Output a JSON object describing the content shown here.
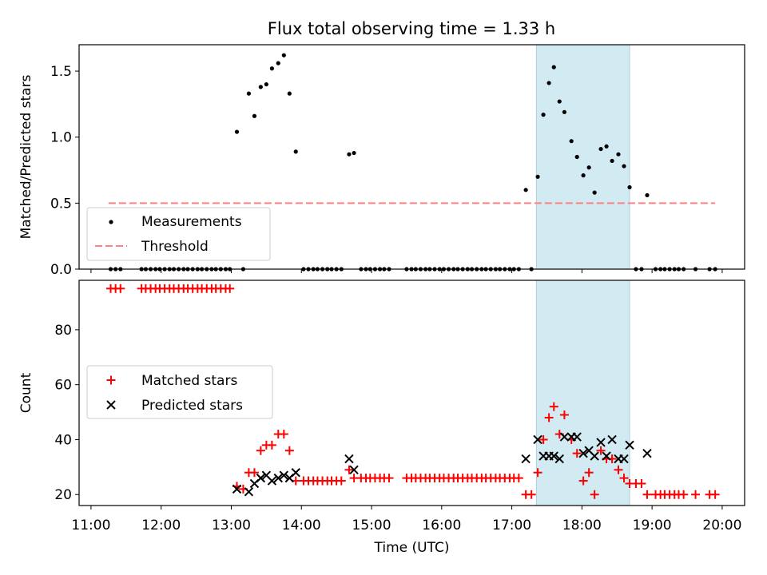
{
  "title": "Flux total observing time = 1.33 h",
  "colors": {
    "threshold": "#ff8080",
    "matched": "#ff0000",
    "predicted": "#000000",
    "span": "#add8e6",
    "measurement": "#000000"
  },
  "chart_data": [
    {
      "type": "scatter",
      "ylabel": "Matched/Predicted stars",
      "xlim": [
        10.83,
        20.32
      ],
      "ylim": [
        0,
        1.7
      ],
      "yticks": [
        {
          "v": 0,
          "label": "0.0"
        },
        {
          "v": 0.5,
          "label": "0.5"
        },
        {
          "v": 1.0,
          "label": "1.0"
        },
        {
          "v": 1.5,
          "label": "1.5"
        }
      ],
      "shaded_span": [
        17.35,
        18.68
      ],
      "legend": {
        "position": "lower left",
        "entries": [
          "Measurements",
          "Threshold"
        ]
      },
      "threshold": {
        "name": "Threshold",
        "value": 0.5,
        "x": [
          11.25,
          19.9
        ]
      },
      "series": [
        {
          "name": "Measurements",
          "points": [
            [
              11.28,
              0
            ],
            [
              11.35,
              0
            ],
            [
              11.42,
              0
            ],
            [
              11.72,
              0
            ],
            [
              11.78,
              0
            ],
            [
              11.85,
              0
            ],
            [
              11.92,
              0
            ],
            [
              11.98,
              0
            ],
            [
              12.05,
              0
            ],
            [
              12.12,
              0
            ],
            [
              12.18,
              0
            ],
            [
              12.25,
              0
            ],
            [
              12.32,
              0
            ],
            [
              12.38,
              0
            ],
            [
              12.45,
              0
            ],
            [
              12.52,
              0
            ],
            [
              12.58,
              0
            ],
            [
              12.65,
              0
            ],
            [
              12.72,
              0
            ],
            [
              12.78,
              0
            ],
            [
              12.85,
              0
            ],
            [
              12.92,
              0
            ],
            [
              12.98,
              0
            ],
            [
              13.08,
              1.04
            ],
            [
              13.17,
              0
            ],
            [
              13.25,
              1.33
            ],
            [
              13.33,
              1.16
            ],
            [
              13.42,
              1.38
            ],
            [
              13.5,
              1.4
            ],
            [
              13.58,
              1.52
            ],
            [
              13.67,
              1.56
            ],
            [
              13.75,
              1.62
            ],
            [
              13.83,
              1.33
            ],
            [
              13.92,
              0.89
            ],
            [
              14.03,
              0
            ],
            [
              14.1,
              0
            ],
            [
              14.17,
              0
            ],
            [
              14.23,
              0
            ],
            [
              14.3,
              0
            ],
            [
              14.37,
              0
            ],
            [
              14.43,
              0
            ],
            [
              14.5,
              0
            ],
            [
              14.57,
              0
            ],
            [
              14.68,
              0.87
            ],
            [
              14.75,
              0.88
            ],
            [
              14.85,
              0
            ],
            [
              14.92,
              0
            ],
            [
              14.98,
              0
            ],
            [
              15.05,
              0
            ],
            [
              15.12,
              0
            ],
            [
              15.18,
              0
            ],
            [
              15.25,
              0
            ],
            [
              15.5,
              0
            ],
            [
              15.57,
              0
            ],
            [
              15.63,
              0
            ],
            [
              15.7,
              0
            ],
            [
              15.77,
              0
            ],
            [
              15.83,
              0
            ],
            [
              15.9,
              0
            ],
            [
              15.97,
              0
            ],
            [
              16.03,
              0
            ],
            [
              16.1,
              0
            ],
            [
              16.17,
              0
            ],
            [
              16.23,
              0
            ],
            [
              16.3,
              0
            ],
            [
              16.37,
              0
            ],
            [
              16.43,
              0
            ],
            [
              16.5,
              0
            ],
            [
              16.57,
              0
            ],
            [
              16.63,
              0
            ],
            [
              16.7,
              0
            ],
            [
              16.77,
              0
            ],
            [
              16.83,
              0
            ],
            [
              16.9,
              0
            ],
            [
              16.97,
              0
            ],
            [
              17.03,
              0
            ],
            [
              17.1,
              0
            ],
            [
              17.2,
              0.6
            ],
            [
              17.28,
              0
            ],
            [
              17.37,
              0.7
            ],
            [
              17.45,
              1.17
            ],
            [
              17.53,
              1.41
            ],
            [
              17.6,
              1.53
            ],
            [
              17.68,
              1.27
            ],
            [
              17.75,
              1.19
            ],
            [
              17.85,
              0.97
            ],
            [
              17.93,
              0.85
            ],
            [
              18.02,
              0.71
            ],
            [
              18.1,
              0.77
            ],
            [
              18.18,
              0.58
            ],
            [
              18.27,
              0.91
            ],
            [
              18.35,
              0.93
            ],
            [
              18.43,
              0.82
            ],
            [
              18.52,
              0.87
            ],
            [
              18.6,
              0.78
            ],
            [
              18.68,
              0.62
            ],
            [
              18.77,
              0
            ],
            [
              18.85,
              0
            ],
            [
              18.93,
              0.56
            ],
            [
              19.05,
              0
            ],
            [
              19.12,
              0
            ],
            [
              19.18,
              0
            ],
            [
              19.25,
              0
            ],
            [
              19.32,
              0
            ],
            [
              19.38,
              0
            ],
            [
              19.45,
              0
            ],
            [
              19.62,
              0
            ],
            [
              19.82,
              0
            ],
            [
              19.9,
              0
            ]
          ]
        }
      ]
    },
    {
      "type": "scatter",
      "xlabel": "Time (UTC)",
      "ylabel": "Count",
      "xlim": [
        10.83,
        20.32
      ],
      "ylim": [
        16,
        98
      ],
      "yticks": [
        {
          "v": 20,
          "label": "20"
        },
        {
          "v": 40,
          "label": "40"
        },
        {
          "v": 60,
          "label": "60"
        },
        {
          "v": 80,
          "label": "80"
        }
      ],
      "xticks": [
        {
          "v": 11,
          "label": "11:00"
        },
        {
          "v": 12,
          "label": "12:00"
        },
        {
          "v": 13,
          "label": "13:00"
        },
        {
          "v": 14,
          "label": "14:00"
        },
        {
          "v": 15,
          "label": "15:00"
        },
        {
          "v": 16,
          "label": "16:00"
        },
        {
          "v": 17,
          "label": "17:00"
        },
        {
          "v": 18,
          "label": "18:00"
        },
        {
          "v": 19,
          "label": "19:00"
        },
        {
          "v": 20,
          "label": "20:00"
        }
      ],
      "shaded_span": [
        17.35,
        18.68
      ],
      "legend": {
        "position": "center left",
        "entries": [
          "Matched stars",
          "Predicted stars"
        ]
      },
      "series": [
        {
          "name": "Matched stars",
          "marker": "+",
          "points": [
            [
              11.28,
              95
            ],
            [
              11.35,
              95
            ],
            [
              11.42,
              95
            ],
            [
              11.72,
              95
            ],
            [
              11.78,
              95
            ],
            [
              11.85,
              95
            ],
            [
              11.92,
              95
            ],
            [
              11.98,
              95
            ],
            [
              12.05,
              95
            ],
            [
              12.12,
              95
            ],
            [
              12.18,
              95
            ],
            [
              12.25,
              95
            ],
            [
              12.32,
              95
            ],
            [
              12.38,
              95
            ],
            [
              12.45,
              95
            ],
            [
              12.52,
              95
            ],
            [
              12.58,
              95
            ],
            [
              12.65,
              95
            ],
            [
              12.72,
              95
            ],
            [
              12.78,
              95
            ],
            [
              12.85,
              95
            ],
            [
              12.92,
              95
            ],
            [
              12.98,
              95
            ],
            [
              13.08,
              23
            ],
            [
              13.17,
              22
            ],
            [
              13.25,
              28
            ],
            [
              13.33,
              28
            ],
            [
              13.42,
              36
            ],
            [
              13.5,
              38
            ],
            [
              13.58,
              38
            ],
            [
              13.67,
              42
            ],
            [
              13.75,
              42
            ],
            [
              13.83,
              36
            ],
            [
              13.92,
              25
            ],
            [
              14.03,
              25
            ],
            [
              14.1,
              25
            ],
            [
              14.17,
              25
            ],
            [
              14.23,
              25
            ],
            [
              14.3,
              25
            ],
            [
              14.37,
              25
            ],
            [
              14.43,
              25
            ],
            [
              14.5,
              25
            ],
            [
              14.57,
              25
            ],
            [
              14.68,
              29
            ],
            [
              14.75,
              26
            ],
            [
              14.85,
              26
            ],
            [
              14.92,
              26
            ],
            [
              14.98,
              26
            ],
            [
              15.05,
              26
            ],
            [
              15.12,
              26
            ],
            [
              15.18,
              26
            ],
            [
              15.25,
              26
            ],
            [
              15.5,
              26
            ],
            [
              15.57,
              26
            ],
            [
              15.63,
              26
            ],
            [
              15.7,
              26
            ],
            [
              15.77,
              26
            ],
            [
              15.83,
              26
            ],
            [
              15.9,
              26
            ],
            [
              15.97,
              26
            ],
            [
              16.03,
              26
            ],
            [
              16.1,
              26
            ],
            [
              16.17,
              26
            ],
            [
              16.23,
              26
            ],
            [
              16.3,
              26
            ],
            [
              16.37,
              26
            ],
            [
              16.43,
              26
            ],
            [
              16.5,
              26
            ],
            [
              16.57,
              26
            ],
            [
              16.63,
              26
            ],
            [
              16.7,
              26
            ],
            [
              16.77,
              26
            ],
            [
              16.83,
              26
            ],
            [
              16.9,
              26
            ],
            [
              16.97,
              26
            ],
            [
              17.03,
              26
            ],
            [
              17.1,
              26
            ],
            [
              17.2,
              20
            ],
            [
              17.28,
              20
            ],
            [
              17.37,
              28
            ],
            [
              17.45,
              40
            ],
            [
              17.53,
              48
            ],
            [
              17.6,
              52
            ],
            [
              17.68,
              42
            ],
            [
              17.75,
              49
            ],
            [
              17.85,
              40
            ],
            [
              17.93,
              35
            ],
            [
              18.02,
              25
            ],
            [
              18.1,
              28
            ],
            [
              18.18,
              20
            ],
            [
              18.27,
              36
            ],
            [
              18.35,
              33
            ],
            [
              18.43,
              33
            ],
            [
              18.52,
              29
            ],
            [
              18.6,
              26
            ],
            [
              18.68,
              24
            ],
            [
              18.77,
              24
            ],
            [
              18.85,
              24
            ],
            [
              18.93,
              20
            ],
            [
              19.05,
              20
            ],
            [
              19.12,
              20
            ],
            [
              19.18,
              20
            ],
            [
              19.25,
              20
            ],
            [
              19.32,
              20
            ],
            [
              19.38,
              20
            ],
            [
              19.45,
              20
            ],
            [
              19.62,
              20
            ],
            [
              19.82,
              20
            ],
            [
              19.9,
              20
            ]
          ]
        },
        {
          "name": "Predicted stars",
          "marker": "x",
          "points": [
            [
              13.08,
              22
            ],
            [
              13.25,
              21
            ],
            [
              13.33,
              24
            ],
            [
              13.42,
              26
            ],
            [
              13.5,
              27
            ],
            [
              13.58,
              25
            ],
            [
              13.67,
              26
            ],
            [
              13.75,
              27
            ],
            [
              13.83,
              26
            ],
            [
              13.92,
              28
            ],
            [
              14.68,
              33
            ],
            [
              14.75,
              29
            ],
            [
              17.2,
              33
            ],
            [
              17.37,
              40
            ],
            [
              17.45,
              34
            ],
            [
              17.53,
              34
            ],
            [
              17.6,
              34
            ],
            [
              17.68,
              33
            ],
            [
              17.75,
              41
            ],
            [
              17.85,
              41
            ],
            [
              17.93,
              41
            ],
            [
              18.02,
              35
            ],
            [
              18.1,
              36
            ],
            [
              18.18,
              34
            ],
            [
              18.27,
              39
            ],
            [
              18.35,
              34
            ],
            [
              18.43,
              40
            ],
            [
              18.52,
              33
            ],
            [
              18.6,
              33
            ],
            [
              18.68,
              38
            ],
            [
              18.93,
              35
            ]
          ]
        }
      ]
    }
  ]
}
